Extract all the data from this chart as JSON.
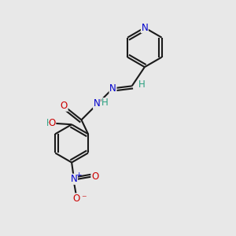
{
  "bg_color": "#e8e8e8",
  "bond_color": "#1a1a1a",
  "bond_width": 1.5,
  "atom_colors": {
    "N": "#0000cc",
    "O": "#cc0000",
    "C": "#1a1a1a",
    "H": "#2aa080"
  },
  "font_size": 8.5,
  "fig_width": 3.0,
  "fig_height": 3.0,
  "dpi": 100
}
